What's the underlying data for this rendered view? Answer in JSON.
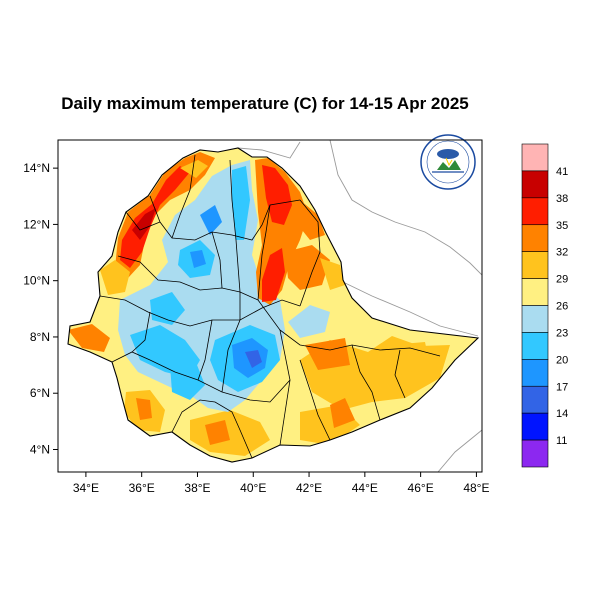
{
  "title": "Daily maximum temperature (C) for 14-15 Apr 2025",
  "axes": {
    "x_ticks": [
      "34°E",
      "36°E",
      "38°E",
      "40°E",
      "42°E",
      "44°E",
      "46°E",
      "48°E"
    ],
    "y_ticks": [
      "4°N",
      "6°N",
      "8°N",
      "10°N",
      "12°N",
      "14°N"
    ],
    "x_range": [
      33,
      48.2
    ],
    "y_range": [
      3.2,
      15.0
    ]
  },
  "legend": {
    "colors": [
      "#ffb4b4",
      "#c80000",
      "#ff1e00",
      "#ff8200",
      "#ffc31e",
      "#fff082",
      "#aadcf0",
      "#32c8ff",
      "#1e96ff",
      "#3264e6",
      "#0014ff",
      "#8c28f0"
    ],
    "labels": [
      "41",
      "38",
      "35",
      "32",
      "29",
      "26",
      "23",
      "20",
      "17",
      "14",
      "11"
    ]
  },
  "logo": {
    "name": "ethiopian-meteorology-institute-logo"
  }
}
